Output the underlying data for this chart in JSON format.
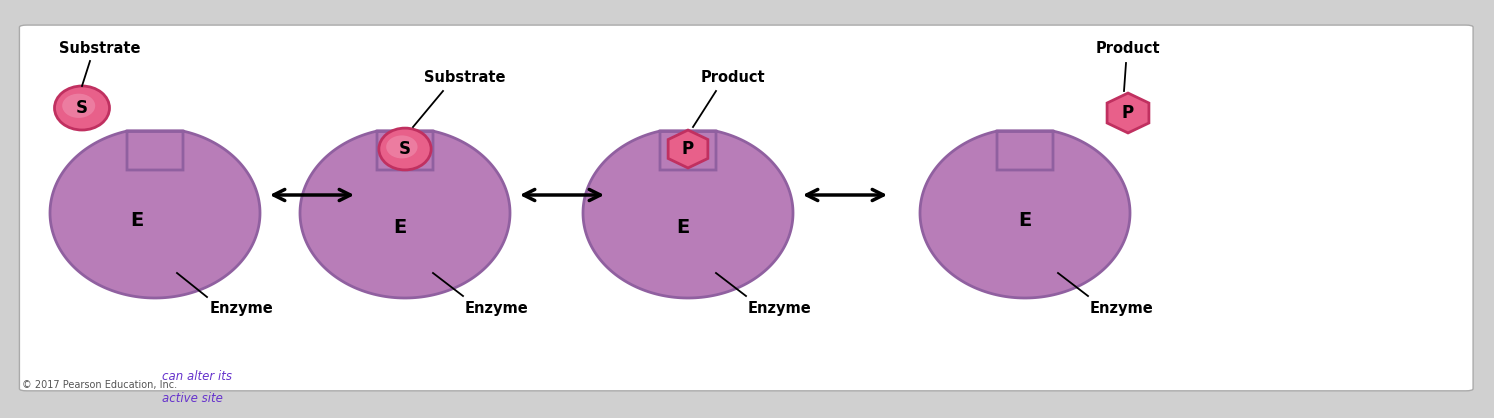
{
  "background_color": "#d0d0d0",
  "panel_color": "#ffffff",
  "enzyme_fill_free": "#b87db8",
  "enzyme_fill_bound": "#b87db8",
  "enzyme_edge": "#9060a0",
  "substrate_fill": "#e8608a",
  "substrate_edge": "#c03060",
  "substrate_inner": "#f090b0",
  "product_fill": "#e8608a",
  "product_edge": "#c03060",
  "label_color": "#000000",
  "copyright_color": "#555555",
  "handwritten_color": "#6633cc",
  "copyright": "© 2017 Pearson Education, Inc.",
  "handwritten_line1": "can alter its",
  "handwritten_line2": "active site"
}
